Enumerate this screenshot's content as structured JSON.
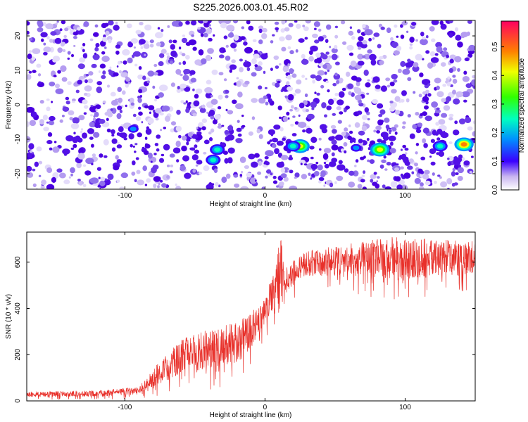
{
  "title": "S225.2026.003.01.45.R02",
  "chart_data": [
    {
      "type": "heatmap",
      "xlabel": "Height of straight line (km)",
      "ylabel": "Frequency (Hz)",
      "xlim": [
        -170,
        150
      ],
      "ylim": [
        -24.5,
        24.5
      ],
      "xticks": [
        -100,
        0,
        100
      ],
      "yticks": [
        -20,
        -10,
        0,
        10,
        20
      ],
      "colorbar": {
        "label": "Normalized spectral amplitude",
        "range": [
          0.0,
          0.59
        ],
        "ticks": [
          0.0,
          0.1,
          0.2,
          0.3,
          0.4,
          0.5
        ]
      },
      "hotspots": [
        {
          "x": -94,
          "y": -7,
          "amp": 0.18
        },
        {
          "x": -34,
          "y": -13,
          "amp": 0.22
        },
        {
          "x": -37,
          "y": -16,
          "amp": 0.2
        },
        {
          "x": 25,
          "y": -12,
          "amp": 0.42
        },
        {
          "x": 20,
          "y": -12,
          "amp": 0.2
        },
        {
          "x": 82,
          "y": -13,
          "amp": 0.45
        },
        {
          "x": 142,
          "y": -11.5,
          "amp": 0.52
        },
        {
          "x": 125,
          "y": -12,
          "amp": 0.2
        },
        {
          "x": 65,
          "y": -12.5,
          "amp": 0.15
        }
      ],
      "band_center_hz": -12.5
    },
    {
      "type": "line",
      "xlabel": "Height of straight line (km)",
      "ylabel": "SNR (10 * v/v)",
      "xlim": [
        -170,
        150
      ],
      "ylim": [
        0,
        730
      ],
      "xticks": [
        -100,
        0,
        100
      ],
      "yticks": [
        0,
        200,
        400,
        600
      ],
      "color": "#e8302a",
      "envelope": [
        {
          "x": -170,
          "low": 5,
          "high": 40
        },
        {
          "x": -120,
          "low": 5,
          "high": 45
        },
        {
          "x": -90,
          "low": 10,
          "high": 60
        },
        {
          "x": -78,
          "low": 20,
          "high": 150
        },
        {
          "x": -60,
          "low": 30,
          "high": 270
        },
        {
          "x": -40,
          "low": 40,
          "high": 310
        },
        {
          "x": -20,
          "low": 60,
          "high": 340
        },
        {
          "x": -10,
          "low": 150,
          "high": 380
        },
        {
          "x": 0,
          "low": 250,
          "high": 470
        },
        {
          "x": 8,
          "low": 300,
          "high": 600
        },
        {
          "x": 11,
          "low": 120,
          "high": 720
        },
        {
          "x": 15,
          "low": 420,
          "high": 580
        },
        {
          "x": 30,
          "low": 480,
          "high": 650
        },
        {
          "x": 60,
          "low": 470,
          "high": 680
        },
        {
          "x": 90,
          "low": 430,
          "high": 710
        },
        {
          "x": 120,
          "low": 440,
          "high": 700
        },
        {
          "x": 150,
          "low": 480,
          "high": 690
        }
      ]
    }
  ]
}
